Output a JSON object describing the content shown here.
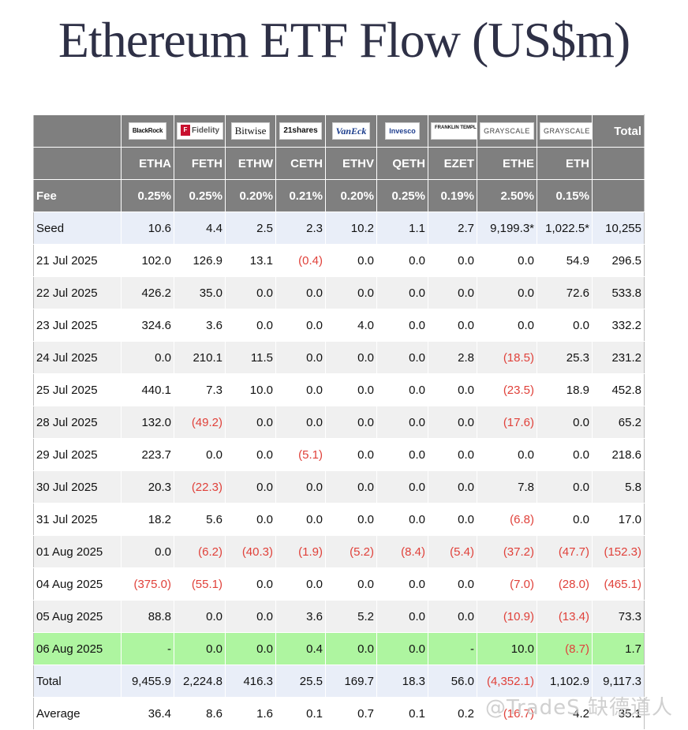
{
  "title": "Ethereum ETF Flow (US$m)",
  "logos": [
    "BlackRock",
    "Fidelity",
    "Bitwise",
    "21shares",
    "VanEck",
    "Invesco",
    "FRANKLIN TEMPLETON",
    "GRAYSCALE",
    "GRAYSCALE"
  ],
  "total_header": "Total",
  "tickers": [
    "ETHA",
    "FETH",
    "ETHW",
    "CETH",
    "ETHV",
    "QETH",
    "EZET",
    "ETHE",
    "ETH"
  ],
  "fee_label": "Fee",
  "fees": [
    "0.25%",
    "0.25%",
    "0.20%",
    "0.21%",
    "0.20%",
    "0.25%",
    "0.19%",
    "2.50%",
    "0.15%"
  ],
  "rows": [
    {
      "label": "Seed",
      "values": [
        "10.6",
        "4.4",
        "2.5",
        "2.3",
        "10.2",
        "1.1",
        "2.7",
        "9,199.3*",
        "1,022.5*",
        "10,255"
      ]
    },
    {
      "label": "21 Jul 2025",
      "values": [
        "102.0",
        "126.9",
        "13.1",
        "(0.4)",
        "0.0",
        "0.0",
        "0.0",
        "0.0",
        "54.9",
        "296.5"
      ]
    },
    {
      "label": "22 Jul 2025",
      "values": [
        "426.2",
        "35.0",
        "0.0",
        "0.0",
        "0.0",
        "0.0",
        "0.0",
        "0.0",
        "72.6",
        "533.8"
      ]
    },
    {
      "label": "23 Jul 2025",
      "values": [
        "324.6",
        "3.6",
        "0.0",
        "0.0",
        "4.0",
        "0.0",
        "0.0",
        "0.0",
        "0.0",
        "332.2"
      ]
    },
    {
      "label": "24 Jul 2025",
      "values": [
        "0.0",
        "210.1",
        "11.5",
        "0.0",
        "0.0",
        "0.0",
        "2.8",
        "(18.5)",
        "25.3",
        "231.2"
      ]
    },
    {
      "label": "25 Jul 2025",
      "values": [
        "440.1",
        "7.3",
        "10.0",
        "0.0",
        "0.0",
        "0.0",
        "0.0",
        "(23.5)",
        "18.9",
        "452.8"
      ]
    },
    {
      "label": "28 Jul 2025",
      "values": [
        "132.0",
        "(49.2)",
        "0.0",
        "0.0",
        "0.0",
        "0.0",
        "0.0",
        "(17.6)",
        "0.0",
        "65.2"
      ]
    },
    {
      "label": "29 Jul 2025",
      "values": [
        "223.7",
        "0.0",
        "0.0",
        "(5.1)",
        "0.0",
        "0.0",
        "0.0",
        "0.0",
        "0.0",
        "218.6"
      ]
    },
    {
      "label": "30 Jul 2025",
      "values": [
        "20.3",
        "(22.3)",
        "0.0",
        "0.0",
        "0.0",
        "0.0",
        "0.0",
        "7.8",
        "0.0",
        "5.8"
      ]
    },
    {
      "label": "31 Jul 2025",
      "values": [
        "18.2",
        "5.6",
        "0.0",
        "0.0",
        "0.0",
        "0.0",
        "0.0",
        "(6.8)",
        "0.0",
        "17.0"
      ]
    },
    {
      "label": "01 Aug 2025",
      "values": [
        "0.0",
        "(6.2)",
        "(40.3)",
        "(1.9)",
        "(5.2)",
        "(8.4)",
        "(5.4)",
        "(37.2)",
        "(47.7)",
        "(152.3)"
      ]
    },
    {
      "label": "04 Aug 2025",
      "values": [
        "(375.0)",
        "(55.1)",
        "0.0",
        "0.0",
        "0.0",
        "0.0",
        "0.0",
        "(7.0)",
        "(28.0)",
        "(465.1)"
      ]
    },
    {
      "label": "05 Aug 2025",
      "values": [
        "88.8",
        "0.0",
        "0.0",
        "3.6",
        "5.2",
        "0.0",
        "0.0",
        "(10.9)",
        "(13.4)",
        "73.3"
      ]
    },
    {
      "label": "06 Aug 2025",
      "values": [
        "-",
        "0.0",
        "0.0",
        "0.4",
        "0.0",
        "0.0",
        "-",
        "10.0",
        "(8.7)",
        "1.7"
      ]
    },
    {
      "label": "Total",
      "values": [
        "9,455.9",
        "2,224.8",
        "416.3",
        "25.5",
        "169.7",
        "18.3",
        "56.0",
        "(4,352.1)",
        "1,102.9",
        "9,117.3"
      ]
    },
    {
      "label": "Average",
      "values": [
        "36.4",
        "8.6",
        "1.6",
        "0.1",
        "0.7",
        "0.1",
        "0.2",
        "(16.7)",
        "4.2",
        "35.1"
      ]
    }
  ],
  "watermark": "@TradeS 缺德道人",
  "colors": {
    "header_bg": "#7f7f7f",
    "negative": "#e0413a",
    "highlight": "#aef5a0",
    "seed_bg": "#e9eef8",
    "stripe": "#f0f0f0"
  }
}
